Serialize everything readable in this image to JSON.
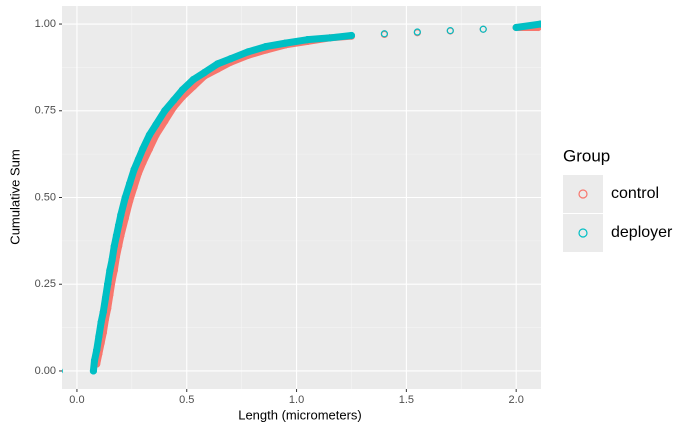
{
  "chart_data": {
    "type": "scatter",
    "x_label": "Length (micrometers)",
    "y_label": "Cumulative Sum",
    "legend_title": "Group",
    "legend_position": "right",
    "grid": true,
    "xlim": [
      -0.068,
      2.113
    ],
    "ylim": [
      -0.052,
      1.052
    ],
    "xticks": [
      {
        "value": 0,
        "label": "0.0"
      },
      0.5,
      {
        "value": 1,
        "label": "1.0"
      },
      1.5,
      {
        "value": 2,
        "label": "2.0"
      }
    ],
    "yticks": [
      {
        "value": 0,
        "label": "0.00"
      },
      0.25,
      {
        "value": 0.5,
        "label": "0.50"
      },
      0.75,
      {
        "value": 1,
        "label": "1.00"
      }
    ],
    "series": [
      {
        "name": "control",
        "color": "#F8766D",
        "x": [
          0.09,
          0.1,
          0.11,
          0.12,
          0.13,
          0.14,
          0.15,
          0.16,
          0.17,
          0.18,
          0.19,
          0.2,
          0.22,
          0.24,
          0.26,
          0.28,
          0.3,
          0.33,
          0.36,
          0.4,
          0.44,
          0.48,
          0.53,
          0.58,
          0.64,
          0.7,
          0.78,
          0.86,
          0.95,
          1.05,
          1.15,
          1.25,
          1.4,
          1.55,
          1.7,
          1.85,
          2.0,
          2.1
        ],
        "values": [
          0.02,
          0.05,
          0.08,
          0.11,
          0.15,
          0.18,
          0.22,
          0.26,
          0.29,
          0.33,
          0.36,
          0.39,
          0.44,
          0.49,
          0.53,
          0.57,
          0.6,
          0.64,
          0.68,
          0.72,
          0.76,
          0.79,
          0.82,
          0.85,
          0.87,
          0.89,
          0.91,
          0.925,
          0.94,
          0.95,
          0.96,
          0.965,
          0.97,
          0.975,
          0.98,
          0.985,
          0.99,
          0.99
        ]
      },
      {
        "name": "deployer",
        "color": "#00BFC4",
        "x": [
          -0.08,
          0.075,
          0.08,
          0.09,
          0.1,
          0.11,
          0.12,
          0.13,
          0.14,
          0.15,
          0.16,
          0.17,
          0.18,
          0.19,
          0.2,
          0.22,
          0.24,
          0.26,
          0.28,
          0.3,
          0.33,
          0.36,
          0.4,
          0.44,
          0.48,
          0.53,
          0.58,
          0.64,
          0.7,
          0.78,
          0.86,
          0.95,
          1.05,
          1.15,
          1.25,
          1.4,
          1.55,
          1.7,
          1.85,
          2.0,
          2.11
        ],
        "values": [
          0.0,
          0.0,
          0.03,
          0.06,
          0.1,
          0.14,
          0.17,
          0.21,
          0.25,
          0.29,
          0.32,
          0.36,
          0.39,
          0.42,
          0.45,
          0.5,
          0.54,
          0.58,
          0.61,
          0.64,
          0.68,
          0.71,
          0.75,
          0.78,
          0.81,
          0.84,
          0.86,
          0.885,
          0.9,
          0.92,
          0.935,
          0.945,
          0.955,
          0.96,
          0.967,
          0.972,
          0.977,
          0.981,
          0.985,
          0.99,
          1.0
        ]
      }
    ]
  }
}
